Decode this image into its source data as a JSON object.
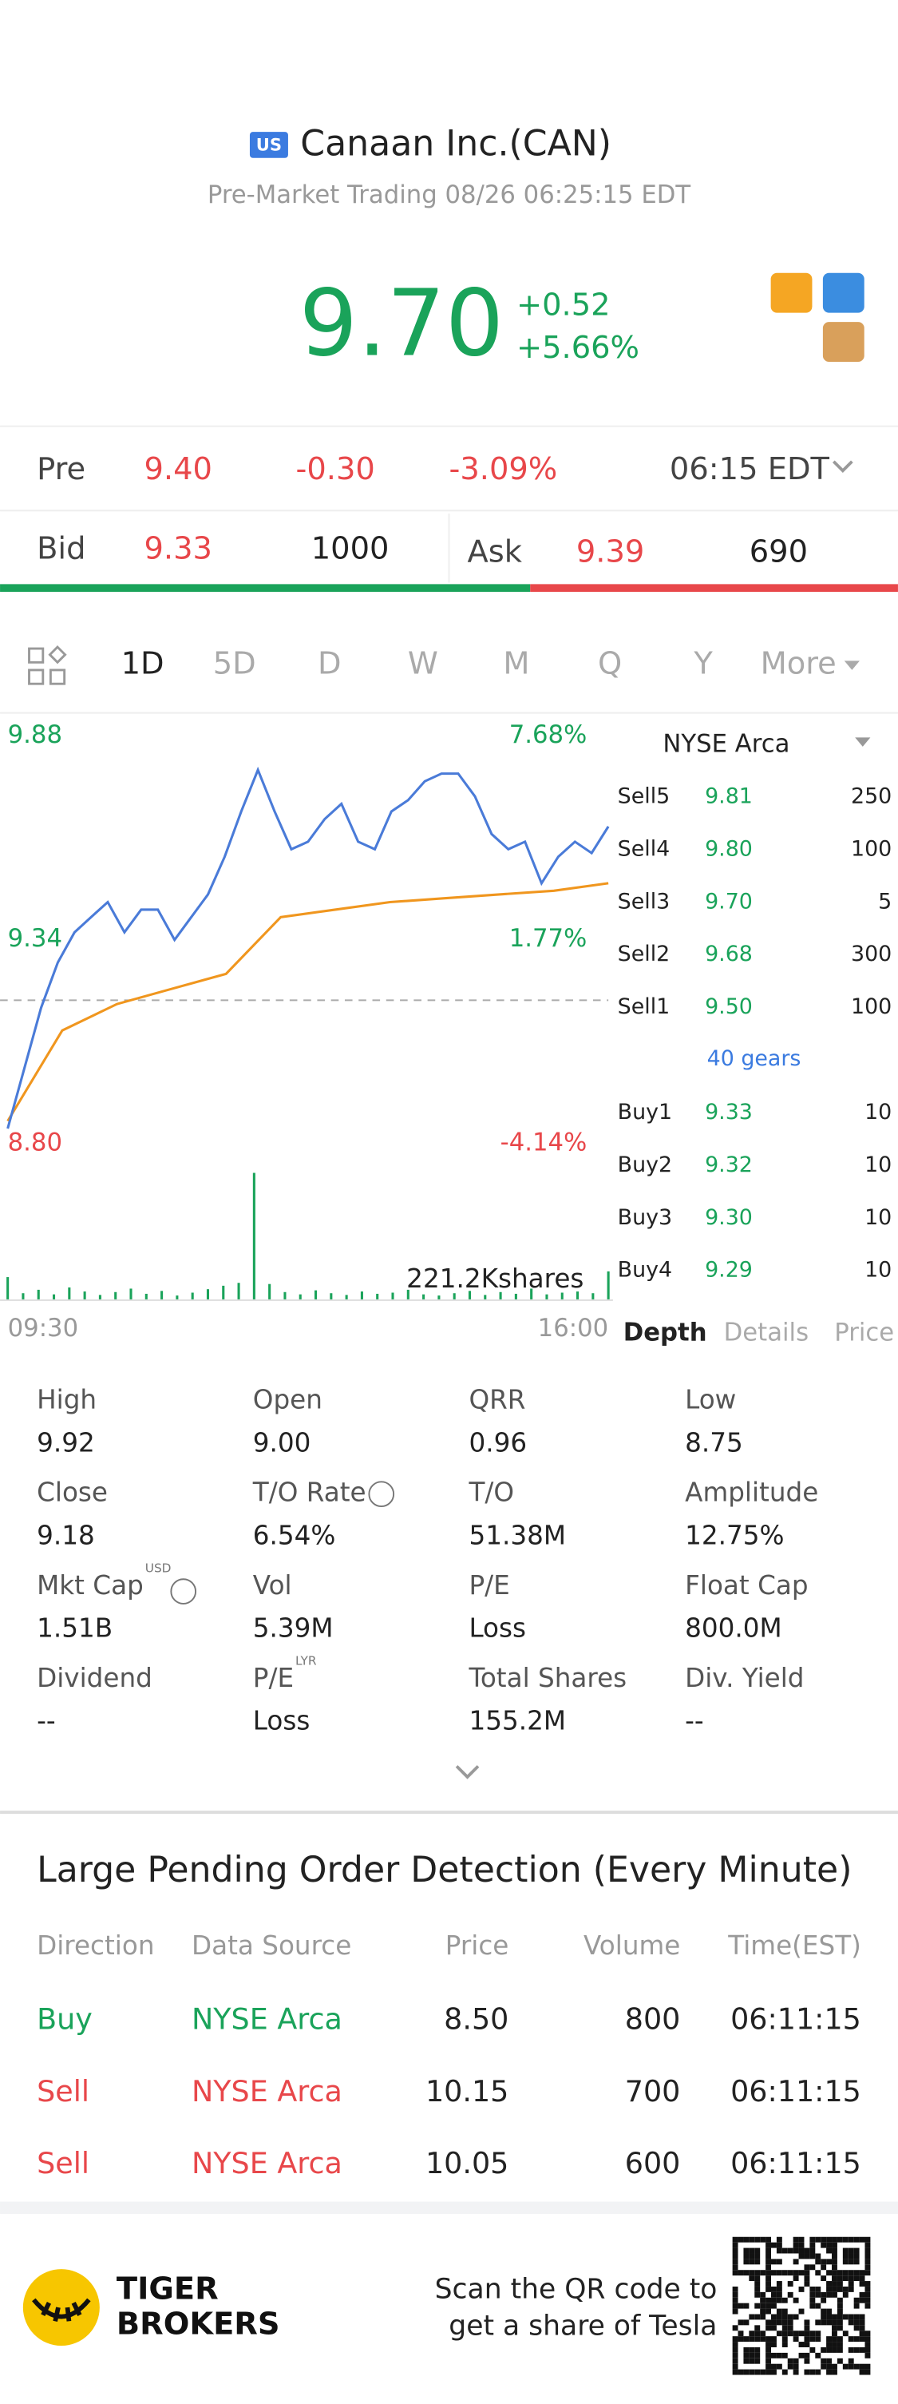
{
  "header": {
    "badge": "US",
    "title": "Canaan Inc.(CAN)",
    "subtitle": "Pre-Market Trading 08/26 06:25:15 EDT"
  },
  "quote": {
    "price": "9.70",
    "change": "+0.52",
    "percent": "+5.66%"
  },
  "pre": {
    "label": "Pre",
    "price": "9.40",
    "change": "-0.30",
    "percent": "-3.09%",
    "time": "06:15 EDT"
  },
  "bid": {
    "label": "Bid",
    "price": "9.33",
    "size": "1000"
  },
  "ask": {
    "label": "Ask",
    "price": "9.39",
    "size": "690"
  },
  "tabs": [
    "1D",
    "5D",
    "D",
    "W",
    "M",
    "Q",
    "Y",
    "More"
  ],
  "chart": {
    "type": "line",
    "ylim": [
      8.8,
      9.88
    ],
    "yticks": [
      9.88,
      9.34,
      {
        "value": 8.8,
        "label": "8.80"
      }
    ],
    "percent_labels": [
      "7.68%",
      "1.77%",
      "-4.14%"
    ],
    "reference": 9.18,
    "xlabels": [
      "09:30",
      "16:00"
    ],
    "price": [
      8.84,
      9.0,
      9.16,
      9.28,
      9.36,
      9.4,
      9.44,
      9.36,
      9.42,
      9.42,
      9.34,
      9.4,
      9.46,
      9.56,
      9.68,
      9.79,
      9.68,
      9.58,
      9.6,
      9.66,
      9.7,
      9.6,
      9.58,
      9.68,
      9.71,
      9.76,
      9.78,
      9.78,
      9.72,
      9.62,
      9.58,
      9.6,
      9.49,
      9.56,
      9.6,
      9.57,
      9.64
    ],
    "average": [
      8.86,
      9.1,
      9.17,
      9.21,
      9.25,
      9.4,
      9.42,
      9.44,
      9.45,
      9.46,
      9.47,
      9.49
    ],
    "price_color": "#4a7bd8",
    "average_color": "#f0961e",
    "volume_label": "221.2Kshares",
    "volume_ylim": [
      0,
      221.2
    ],
    "volume": [
      40,
      12,
      18,
      10,
      22,
      15,
      9,
      14,
      20,
      11,
      16,
      8,
      13,
      19,
      25,
      30,
      221.2,
      28,
      14,
      10,
      17,
      12,
      9,
      15,
      11,
      13,
      18,
      10,
      8,
      12,
      16,
      9,
      14,
      11,
      20,
      10,
      13,
      15,
      12,
      50
    ],
    "volume_color": "#1aa35a"
  },
  "book": {
    "exchange": "NYSE Arca",
    "sells": [
      [
        "Sell5",
        "9.81",
        "250"
      ],
      [
        "Sell4",
        "9.80",
        "100"
      ],
      [
        "Sell3",
        "9.70",
        "5"
      ],
      [
        "Sell2",
        "9.68",
        "300"
      ],
      [
        "Sell1",
        "9.50",
        "100"
      ]
    ],
    "gears": "40 gears",
    "buys": [
      [
        "Buy1",
        "9.33",
        "10"
      ],
      [
        "Buy2",
        "9.32",
        "10"
      ],
      [
        "Buy3",
        "9.30",
        "10"
      ],
      [
        "Buy4",
        "9.29",
        "10"
      ]
    ],
    "tabs": [
      "Depth",
      "Details",
      "Price"
    ]
  },
  "stats": [
    {
      "label": "High",
      "value": "9.92"
    },
    {
      "label": "Open",
      "value": "9.00"
    },
    {
      "label": "QRR",
      "value": "0.96"
    },
    {
      "label": "Low",
      "value": "8.75"
    },
    {
      "label": "Close",
      "value": "9.18"
    },
    {
      "label": "T/O Rate",
      "value": "6.54%"
    },
    {
      "label": "T/O",
      "value": "51.38M"
    },
    {
      "label": "Amplitude",
      "value": "12.75%"
    },
    {
      "label": "Mkt Cap",
      "sup": "USD",
      "value": "1.51B"
    },
    {
      "label": "Vol",
      "value": "5.39M"
    },
    {
      "label": "P/E",
      "value": "Loss"
    },
    {
      "label": "Float Cap",
      "value": "800.0M"
    },
    {
      "label": "Dividend",
      "value": "--"
    },
    {
      "label": "P/E",
      "sup": "LYR",
      "value": "Loss"
    },
    {
      "label": "Total Shares",
      "value": "155.2M"
    },
    {
      "label": "Div. Yield",
      "value": "--"
    }
  ],
  "orders": {
    "title": "Large Pending Order Detection (Every Minute)",
    "headers": [
      "Direction",
      "Data Source",
      "Price",
      "Volume",
      "Time(EST)"
    ],
    "rows": [
      [
        "Buy",
        "NYSE Arca",
        "8.50",
        "800",
        "06:11:15"
      ],
      [
        "Sell",
        "NYSE Arca",
        "10.15",
        "700",
        "06:11:15"
      ],
      [
        "Sell",
        "NYSE Arca",
        "10.05",
        "600",
        "06:11:15"
      ]
    ]
  },
  "footer": {
    "brand": [
      "TIGER",
      "BROKERS"
    ],
    "text": [
      "Scan the QR code to",
      "get a share of Tesla"
    ]
  }
}
